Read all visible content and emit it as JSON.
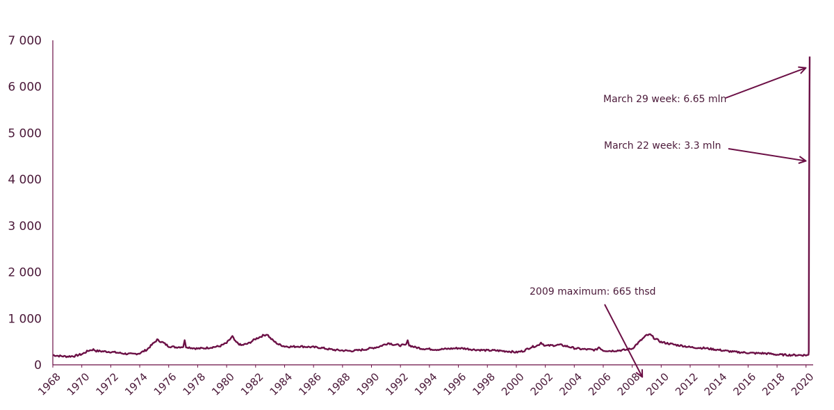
{
  "chart_data": {
    "type": "line",
    "title": "",
    "xlabel": "",
    "ylabel": "",
    "xlim": [
      1968.0,
      2020.3
    ],
    "ylim": [
      0,
      7000
    ],
    "grid": false,
    "legend": "none",
    "colors": {
      "line": "#6b0f45",
      "axis": "#6b0f45",
      "text": "#4a1838"
    },
    "y_ticks": [
      {
        "value": 0,
        "label": "0"
      },
      {
        "value": 1000,
        "label": "1 000"
      },
      {
        "value": 2000,
        "label": "2 000"
      },
      {
        "value": 3000,
        "label": "3 000"
      },
      {
        "value": 4000,
        "label": "4 000"
      },
      {
        "value": 5000,
        "label": "5 000"
      },
      {
        "value": 6000,
        "label": "6 000"
      },
      {
        "value": 7000,
        "label": "7 000"
      }
    ],
    "x_ticks": [
      {
        "value": 1968,
        "label": "1968"
      },
      {
        "value": 1970,
        "label": "1970"
      },
      {
        "value": 1972,
        "label": "1972"
      },
      {
        "value": 1974,
        "label": "1974"
      },
      {
        "value": 1976,
        "label": "1976"
      },
      {
        "value": 1978,
        "label": "1978"
      },
      {
        "value": 1980,
        "label": "1980"
      },
      {
        "value": 1982,
        "label": "1982"
      },
      {
        "value": 1984,
        "label": "1984"
      },
      {
        "value": 1986,
        "label": "1986"
      },
      {
        "value": 1988,
        "label": "1988"
      },
      {
        "value": 1990,
        "label": "1990"
      },
      {
        "value": 1992,
        "label": "1992"
      },
      {
        "value": 1994,
        "label": "1994"
      },
      {
        "value": 1996,
        "label": "1996"
      },
      {
        "value": 1998,
        "label": "1998"
      },
      {
        "value": 2000,
        "label": "2000"
      },
      {
        "value": 2002,
        "label": "2002"
      },
      {
        "value": 2004,
        "label": "2004"
      },
      {
        "value": 2006,
        "label": "2006"
      },
      {
        "value": 2008,
        "label": "2008"
      },
      {
        "value": 2010,
        "label": "2010"
      },
      {
        "value": 2012,
        "label": "2012"
      },
      {
        "value": 2014,
        "label": "2014"
      },
      {
        "value": 2016,
        "label": "2016"
      },
      {
        "value": 2018,
        "label": "2018"
      },
      {
        "value": 2020,
        "label": "2020"
      }
    ],
    "series": [
      {
        "x": [
          1968.0,
          1968.5,
          1969.0,
          1969.5,
          1970.0,
          1970.5,
          1970.8,
          1971.0,
          1971.5,
          1972.0,
          1972.5,
          1973.0,
          1973.5,
          1974.0,
          1974.5,
          1974.9,
          1975.2,
          1975.6,
          1976.0,
          1976.5,
          1977.0,
          1977.1,
          1977.2,
          1977.5,
          1978.0,
          1978.5,
          1979.0,
          1979.5,
          1980.0,
          1980.4,
          1980.6,
          1981.0,
          1981.5,
          1982.0,
          1982.5,
          1982.8,
          1983.0,
          1983.3,
          1983.6,
          1984.0,
          1984.5,
          1985.0,
          1985.5,
          1986.0,
          1986.5,
          1987.0,
          1987.5,
          1988.0,
          1988.5,
          1989.0,
          1989.5,
          1990.0,
          1990.5,
          1991.0,
          1991.2,
          1991.5,
          1992.0,
          1992.4,
          1992.5,
          1992.6,
          1993.0,
          1993.5,
          1994.0,
          1994.5,
          1995.0,
          1995.5,
          1996.0,
          1996.5,
          1997.0,
          1997.5,
          1998.0,
          1998.5,
          1999.0,
          1999.5,
          2000.0,
          2000.5,
          2001.0,
          2001.5,
          2001.7,
          2002.0,
          2002.5,
          2003.0,
          2003.5,
          2004.0,
          2004.5,
          2005.0,
          2005.5,
          2005.7,
          2006.0,
          2006.5,
          2007.0,
          2007.5,
          2008.0,
          2008.5,
          2009.0,
          2009.25,
          2009.5,
          2010.0,
          2010.5,
          2011.0,
          2011.5,
          2012.0,
          2012.5,
          2013.0,
          2013.5,
          2014.0,
          2014.5,
          2015.0,
          2015.5,
          2016.0,
          2016.5,
          2017.0,
          2017.5,
          2018.0,
          2018.5,
          2019.0,
          2019.5,
          2020.0,
          2020.17,
          2020.19,
          2020.21,
          2020.23,
          2020.25
        ],
        "values": [
          210,
          190,
          180,
          190,
          230,
          310,
          330,
          300,
          290,
          280,
          260,
          240,
          230,
          250,
          330,
          450,
          540,
          480,
          400,
          380,
          390,
          520,
          390,
          370,
          350,
          360,
          380,
          400,
          470,
          610,
          500,
          420,
          460,
          560,
          630,
          660,
          580,
          500,
          440,
          400,
          390,
          400,
          390,
          380,
          370,
          340,
          320,
          310,
          300,
          310,
          330,
          360,
          390,
          450,
          470,
          440,
          420,
          430,
          550,
          420,
          380,
          350,
          340,
          330,
          340,
          350,
          360,
          350,
          330,
          320,
          310,
          310,
          300,
          290,
          270,
          300,
          380,
          420,
          480,
          410,
          420,
          430,
          400,
          360,
          340,
          330,
          320,
          380,
          310,
          300,
          310,
          320,
          350,
          500,
          640,
          650,
          580,
          490,
          460,
          430,
          410,
          380,
          370,
          360,
          340,
          320,
          300,
          280,
          270,
          260,
          250,
          250,
          240,
          220,
          215,
          210,
          210,
          210,
          210,
          280,
          3300,
          5000,
          6650
        ]
      }
    ],
    "annotations": [
      {
        "text": "March 29 week: 6.65 mln",
        "x": 2020.23,
        "y": 6650
      },
      {
        "text": "March 22 week: 3.3 mln",
        "x": 2020.23,
        "y": 4400
      },
      {
        "text": "2009 maximum: 665 thsd",
        "x": 2009.25,
        "y": 650
      }
    ]
  }
}
